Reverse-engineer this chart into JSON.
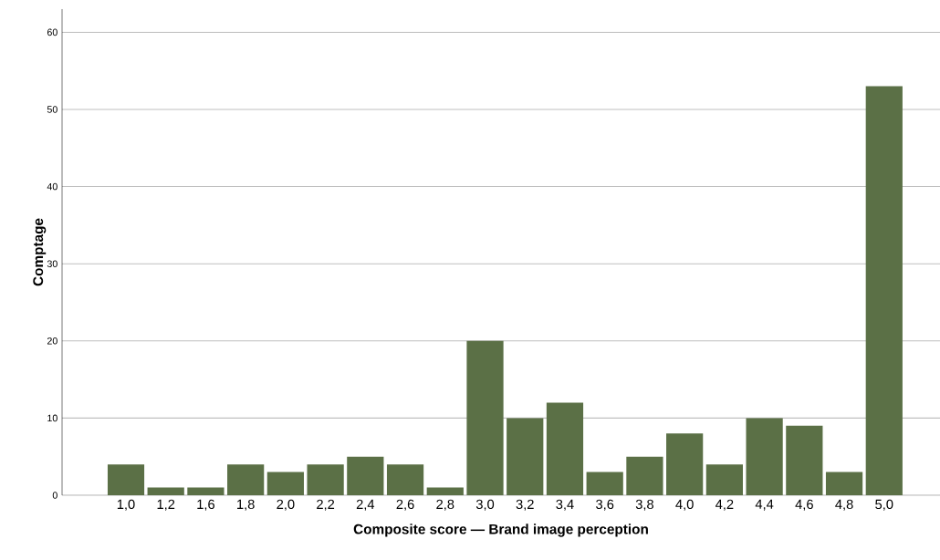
{
  "chart_data": {
    "type": "bar",
    "xlabel": "Composite score — Brand image perception",
    "ylabel": "Comptage",
    "categories": [
      "1,0",
      "1,2",
      "1,6",
      "1,8",
      "2,0",
      "2,2",
      "2,4",
      "2,6",
      "2,8",
      "3,0",
      "3,2",
      "3,4",
      "3,6",
      "3,8",
      "4,0",
      "4,2",
      "4,4",
      "4,6",
      "4,8",
      "5,0"
    ],
    "values": [
      4,
      1,
      1,
      4,
      3,
      4,
      5,
      4,
      1,
      20,
      10,
      12,
      3,
      5,
      8,
      4,
      10,
      9,
      3,
      53
    ],
    "color": "#5b7046",
    "ylim": [
      0,
      63
    ],
    "yticks": [
      0,
      10,
      20,
      30,
      40,
      50,
      60
    ],
    "grid": "y"
  }
}
